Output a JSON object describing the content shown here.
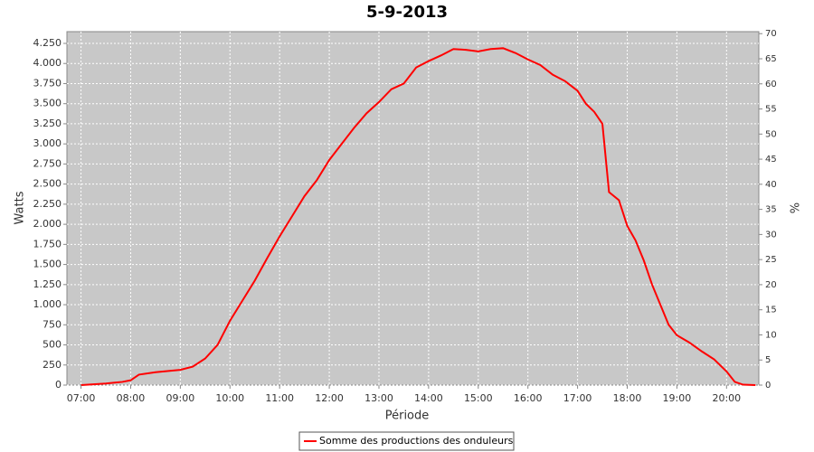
{
  "chart_data": {
    "type": "line",
    "title": "5-9-2013",
    "x_label": "Période",
    "y_label": "Watts",
    "y2_label": "%",
    "grid": true,
    "legend": "bottom",
    "x": [
      "07:00",
      "07:30",
      "07:50",
      "08:00",
      "08:10",
      "08:30",
      "08:50",
      "09:00",
      "09:15",
      "09:30",
      "09:45",
      "10:00",
      "10:15",
      "10:30",
      "10:45",
      "11:00",
      "11:15",
      "11:30",
      "11:45",
      "12:00",
      "12:15",
      "12:30",
      "12:45",
      "13:00",
      "13:15",
      "13:30",
      "13:45",
      "14:00",
      "14:15",
      "14:30",
      "14:45",
      "15:00",
      "15:15",
      "15:30",
      "15:45",
      "16:00",
      "16:15",
      "16:30",
      "16:45",
      "17:00",
      "17:10",
      "17:20",
      "17:30",
      "17:38",
      "17:50",
      "18:00",
      "18:10",
      "18:20",
      "18:30",
      "18:40",
      "18:50",
      "19:00",
      "19:15",
      "19:30",
      "19:45",
      "20:00",
      "20:10",
      "20:20",
      "20:35"
    ],
    "series": [
      {
        "name": "Somme des productions des onduleurs",
        "color": "#ff0000",
        "values": [
          0,
          20,
          40,
          60,
          130,
          160,
          180,
          190,
          230,
          330,
          500,
          800,
          1050,
          1300,
          1580,
          1850,
          2100,
          2350,
          2550,
          2800,
          3000,
          3200,
          3380,
          3520,
          3680,
          3750,
          3950,
          4030,
          4100,
          4180,
          4170,
          4150,
          4180,
          4190,
          4130,
          4050,
          3980,
          3860,
          3780,
          3660,
          3500,
          3400,
          3250,
          2400,
          2300,
          1980,
          1800,
          1550,
          1250,
          1000,
          750,
          620,
          530,
          420,
          320,
          170,
          40,
          5,
          0
        ]
      }
    ],
    "xlim": [
      "06:43",
      "20:39"
    ],
    "xticks": [
      "07:00",
      "08:00",
      "09:00",
      "10:00",
      "11:00",
      "12:00",
      "13:00",
      "14:00",
      "15:00",
      "16:00",
      "17:00",
      "18:00",
      "19:00",
      "20:00"
    ],
    "ylim": [
      0,
      4396
    ],
    "yticks": [
      0,
      250,
      500,
      750,
      {
        "value": 1000,
        "label": "1.000"
      },
      {
        "value": 1250,
        "label": "1.250"
      },
      {
        "value": 1500,
        "label": "1.500"
      },
      {
        "value": 1750,
        "label": "1.750"
      },
      {
        "value": 2000,
        "label": "2.000"
      },
      {
        "value": 2250,
        "label": "2.250"
      },
      {
        "value": 2500,
        "label": "2.500"
      },
      {
        "value": 2750,
        "label": "2.750"
      },
      {
        "value": 3000,
        "label": "3.000"
      },
      {
        "value": 3250,
        "label": "3.250"
      },
      {
        "value": 3500,
        "label": "3.500"
      },
      {
        "value": 3750,
        "label": "3.750"
      },
      {
        "value": 4000,
        "label": "4.000"
      },
      {
        "value": 4250,
        "label": "4.250"
      }
    ],
    "y2lim": [
      0,
      70.4
    ],
    "y2ticks": [
      0,
      5,
      10,
      15,
      20,
      25,
      30,
      35,
      40,
      45,
      50,
      55,
      60,
      65,
      70
    ]
  }
}
